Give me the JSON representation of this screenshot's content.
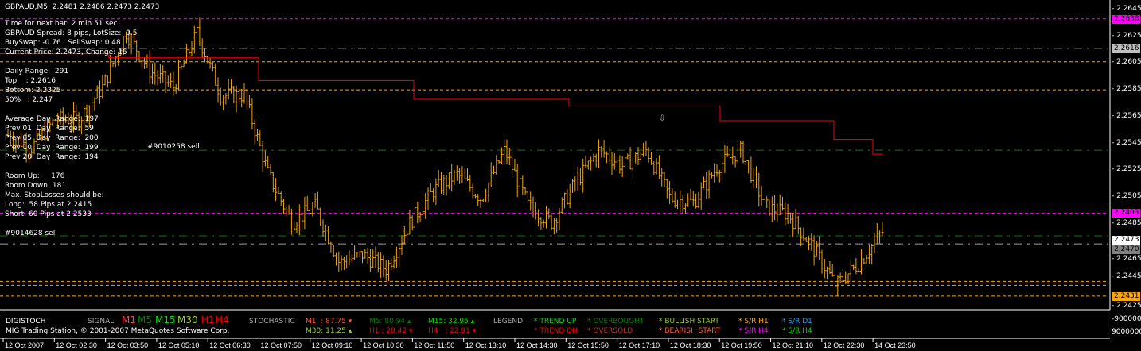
{
  "header": {
    "title": "GBPAUD,M5  2.2481 2.2486 2.2473 2.2473"
  },
  "info": [
    "Time for next bar: 2 min 51 sec",
    "GBPAUD Spread: 8 pips, LotSize:  0.5",
    "BuySwap: -0.76   SellSwap: 0.48",
    "Current Price: 2.2473, Change: 16",
    "",
    "Daily Range:  291",
    "Top    : 2.2616",
    "Bottom: 2.2325",
    "50%   : 2.247",
    "",
    "Average Day  Range:  197",
    "Prev 01  Day  Range:  59",
    "Prev 05  Day  Range:  200",
    "Prev 10  Day  Range:  199",
    "Prev 20  Day  Range:  194",
    "",
    "Room Up:     176",
    "Room Down: 181",
    "Max. StopLosses should be:",
    "Long:  58 Pips at 2.2415",
    "Short: 60 Pips at 2.2533",
    "",
    "#9014628 sell"
  ],
  "order_label_overlap": "#9010258 sell",
  "colors": {
    "bars": "#f0a30a",
    "red_line": "#ff0000",
    "magenta": "#ff00ff",
    "orange": "#ffa500",
    "green": "#008000",
    "grey": "#a0a0a0"
  },
  "chart_data": {
    "type": "bar",
    "symbol": "GBPAUD",
    "timeframe": "M5",
    "ylim": [
      2.2425,
      2.2645
    ],
    "y_ticks": [
      "2.2645",
      "2.2625",
      "2.2605",
      "2.2585",
      "2.2565",
      "2.2545",
      "2.2525",
      "2.2505",
      "2.2485",
      "2.2465",
      "2.2445",
      "2.2425"
    ],
    "x_ticks": [
      "12 Oct 2007",
      "12 Oct 02:30",
      "12 Oct 03:50",
      "12 Oct 05:10",
      "12 Oct 06:30",
      "12 Oct 07:50",
      "12 Oct 09:10",
      "12 Oct 10:30",
      "12 Oct 11:50",
      "12 Oct 13:10",
      "12 Oct 14:30",
      "12 Oct 15:50",
      "12 Oct 17:10",
      "12 Oct 18:30",
      "12 Oct 19:50",
      "12 Oct 21:10",
      "12 Oct 22:30",
      "14 Oct 23:50"
    ],
    "price_path": [
      2.2551,
      2.2542,
      2.2563,
      2.2563,
      2.2587,
      2.2628,
      2.2599,
      2.2587,
      2.2628,
      2.2581,
      2.2581,
      2.2522,
      2.2486,
      2.2498,
      2.2456,
      2.2462,
      2.2451,
      2.2486,
      2.251,
      2.2522,
      2.2504,
      2.254,
      2.2498,
      2.2486,
      2.2516,
      2.254,
      2.2528,
      2.254,
      2.2504,
      2.2501,
      2.2528,
      2.254,
      2.2498,
      2.2492,
      2.2468,
      2.2439,
      2.2456,
      2.248
    ],
    "price_labels": [
      {
        "value": "2.2638",
        "color": "#ff00ff"
      },
      {
        "value": "2.2616",
        "color": "#c0c0c0"
      },
      {
        "value": "2.2493",
        "color": "#ff00ff"
      },
      {
        "value": "2.2473",
        "color": "#ffffff"
      },
      {
        "value": "2.2470",
        "color": "#808080"
      },
      {
        "value": "2.2431",
        "color": "#ffa500"
      }
    ],
    "hlines": [
      {
        "price": 2.2638,
        "color": "#ff00ff",
        "style": "dash"
      },
      {
        "price": 2.2616,
        "color": "#a0a0a0",
        "style": "dashdot"
      },
      {
        "price": 2.2606,
        "color": "#ffa500",
        "style": "dash"
      },
      {
        "price": 2.2585,
        "color": "#ffa500",
        "style": "dash"
      },
      {
        "price": 2.254,
        "color": "#008000",
        "style": "dashdot"
      },
      {
        "price": 2.2493,
        "color": "#ff00ff",
        "style": "dash"
      },
      {
        "price": 2.2476,
        "color": "#008000",
        "style": "dashdot"
      },
      {
        "price": 2.247,
        "color": "#a0a0a0",
        "style": "dashdot"
      },
      {
        "price": 2.2442,
        "color": "#ffa500",
        "style": "dash"
      },
      {
        "price": 2.2439,
        "color": "#ffa500",
        "style": "dash"
      },
      {
        "price": 2.2431,
        "color": "#ffa500",
        "style": "dash"
      }
    ],
    "red_line_steps": [
      2.2612,
      2.2609,
      2.2592,
      2.2578,
      2.2573,
      2.2562,
      2.2548,
      2.2537
    ]
  },
  "stoch": {
    "name": "DIGISTOCH",
    "copyright": "MIG Trading Station, © 2001-2007 MetaQuotes Software Corp.",
    "signal_label": "SIGNAL",
    "signals": [
      {
        "t": "M1",
        "c": "#ff4040"
      },
      {
        "t": "M5",
        "c": "#008000"
      },
      {
        "t": "M15",
        "c": "#00e000"
      },
      {
        "t": "M30",
        "c": "#9acd32"
      },
      {
        "t": "H1",
        "c": "#ff0000"
      },
      {
        "t": "H4",
        "c": "#ff0000"
      }
    ],
    "stochastic_label": "STOCHASTIC",
    "values": [
      {
        "t": "M1  : 87.75 ▾",
        "c": "#ff5030"
      },
      {
        "t": "M30: 11.25 ▴",
        "c": "#9acd32"
      },
      {
        "t": "M5: 80.94 ▴",
        "c": "#008000"
      },
      {
        "t": "H1 : 28.42 ▾",
        "c": "#ff0000"
      },
      {
        "t": "M15: 32.95 ▴",
        "c": "#00e000"
      },
      {
        "t": "H4   : 22.91 ▾",
        "c": "#ff0000"
      }
    ],
    "legend_label": "LEGEND",
    "legend": [
      {
        "t": "* TREND UP",
        "c": "#00e000"
      },
      {
        "t": "* TREND DN",
        "c": "#ff0000"
      },
      {
        "t": "* OVERBOUGHT",
        "c": "#008000"
      },
      {
        "t": "* OVERSOLD",
        "c": "#c03020"
      },
      {
        "t": "* BULLISH START",
        "c": "#9acd32"
      },
      {
        "t": "* BEARISH START",
        "c": "#ff6040"
      },
      {
        "t": "* S/R H1",
        "c": "#ffa500"
      },
      {
        "t": "* S/R H4",
        "c": "#ff00ff"
      },
      {
        "t": "* S/R D1",
        "c": "#1e9fff"
      },
      {
        "t": "* S/R H4",
        "c": "#00e000"
      }
    ],
    "axis": [
      "-9000000",
      "9000000"
    ]
  }
}
